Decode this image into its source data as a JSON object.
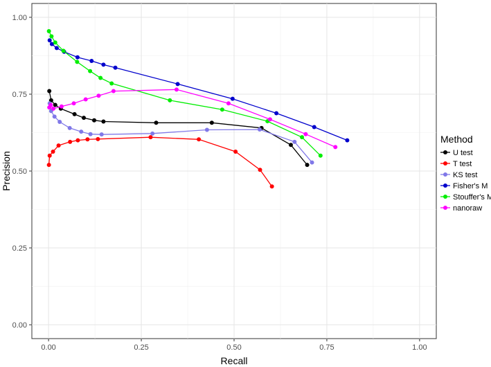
{
  "chart_data": {
    "type": "line",
    "xlabel": "Recall",
    "ylabel": "Precision",
    "xlim": [
      -0.045,
      1.045
    ],
    "ylim": [
      -0.045,
      1.045
    ],
    "x_ticks": [
      "0.00",
      "0.25",
      "0.50",
      "0.75",
      "1.00"
    ],
    "y_ticks": [
      "0.00",
      "0.25",
      "0.50",
      "0.75",
      "1.00"
    ],
    "grid": true,
    "legend_title": "Method",
    "legend_position": "right",
    "series": [
      {
        "name": "U test",
        "color": "#000000",
        "points": [
          [
            0.002,
            0.76
          ],
          [
            0.007,
            0.73
          ],
          [
            0.018,
            0.715
          ],
          [
            0.033,
            0.703
          ],
          [
            0.07,
            0.685
          ],
          [
            0.095,
            0.673
          ],
          [
            0.123,
            0.665
          ],
          [
            0.148,
            0.661
          ],
          [
            0.29,
            0.657
          ],
          [
            0.44,
            0.657
          ],
          [
            0.574,
            0.64
          ],
          [
            0.653,
            0.585
          ],
          [
            0.697,
            0.52
          ]
        ]
      },
      {
        "name": "T test",
        "color": "#ff0000",
        "points": [
          [
            0.001,
            0.52
          ],
          [
            0.003,
            0.55
          ],
          [
            0.012,
            0.563
          ],
          [
            0.027,
            0.583
          ],
          [
            0.058,
            0.595
          ],
          [
            0.079,
            0.6
          ],
          [
            0.105,
            0.603
          ],
          [
            0.133,
            0.604
          ],
          [
            0.275,
            0.61
          ],
          [
            0.405,
            0.603
          ],
          [
            0.504,
            0.563
          ],
          [
            0.57,
            0.504
          ],
          [
            0.602,
            0.45
          ]
        ]
      },
      {
        "name": "KS test",
        "color": "#8078e8",
        "points": [
          [
            0.003,
            0.72
          ],
          [
            0.007,
            0.695
          ],
          [
            0.016,
            0.677
          ],
          [
            0.03,
            0.66
          ],
          [
            0.057,
            0.64
          ],
          [
            0.088,
            0.628
          ],
          [
            0.113,
            0.62
          ],
          [
            0.143,
            0.619
          ],
          [
            0.28,
            0.622
          ],
          [
            0.427,
            0.634
          ],
          [
            0.569,
            0.635
          ],
          [
            0.663,
            0.595
          ],
          [
            0.71,
            0.528
          ]
        ]
      },
      {
        "name": "Fisher's M",
        "color": "#0000cc",
        "points": [
          [
            0.003,
            0.925
          ],
          [
            0.009,
            0.913
          ],
          [
            0.022,
            0.9
          ],
          [
            0.042,
            0.888
          ],
          [
            0.078,
            0.87
          ],
          [
            0.116,
            0.858
          ],
          [
            0.148,
            0.846
          ],
          [
            0.18,
            0.836
          ],
          [
            0.348,
            0.783
          ],
          [
            0.496,
            0.735
          ],
          [
            0.614,
            0.688
          ],
          [
            0.716,
            0.643
          ],
          [
            0.805,
            0.6
          ]
        ]
      },
      {
        "name": "Stouffer's M",
        "color": "#00ee00",
        "points": [
          [
            0.001,
            0.955
          ],
          [
            0.008,
            0.938
          ],
          [
            0.018,
            0.918
          ],
          [
            0.04,
            0.891
          ],
          [
            0.077,
            0.855
          ],
          [
            0.112,
            0.825
          ],
          [
            0.14,
            0.803
          ],
          [
            0.17,
            0.785
          ],
          [
            0.327,
            0.73
          ],
          [
            0.468,
            0.7
          ],
          [
            0.59,
            0.662
          ],
          [
            0.683,
            0.61
          ],
          [
            0.733,
            0.55
          ]
        ]
      },
      {
        "name": "nanoraw",
        "color": "#ff00ff",
        "points": [
          [
            0.002,
            0.707
          ],
          [
            0.006,
            0.715
          ],
          [
            0.013,
            0.703
          ],
          [
            0.035,
            0.71
          ],
          [
            0.068,
            0.72
          ],
          [
            0.1,
            0.733
          ],
          [
            0.135,
            0.745
          ],
          [
            0.175,
            0.76
          ],
          [
            0.345,
            0.765
          ],
          [
            0.485,
            0.72
          ],
          [
            0.597,
            0.668
          ],
          [
            0.693,
            0.62
          ],
          [
            0.773,
            0.578
          ]
        ]
      }
    ]
  }
}
